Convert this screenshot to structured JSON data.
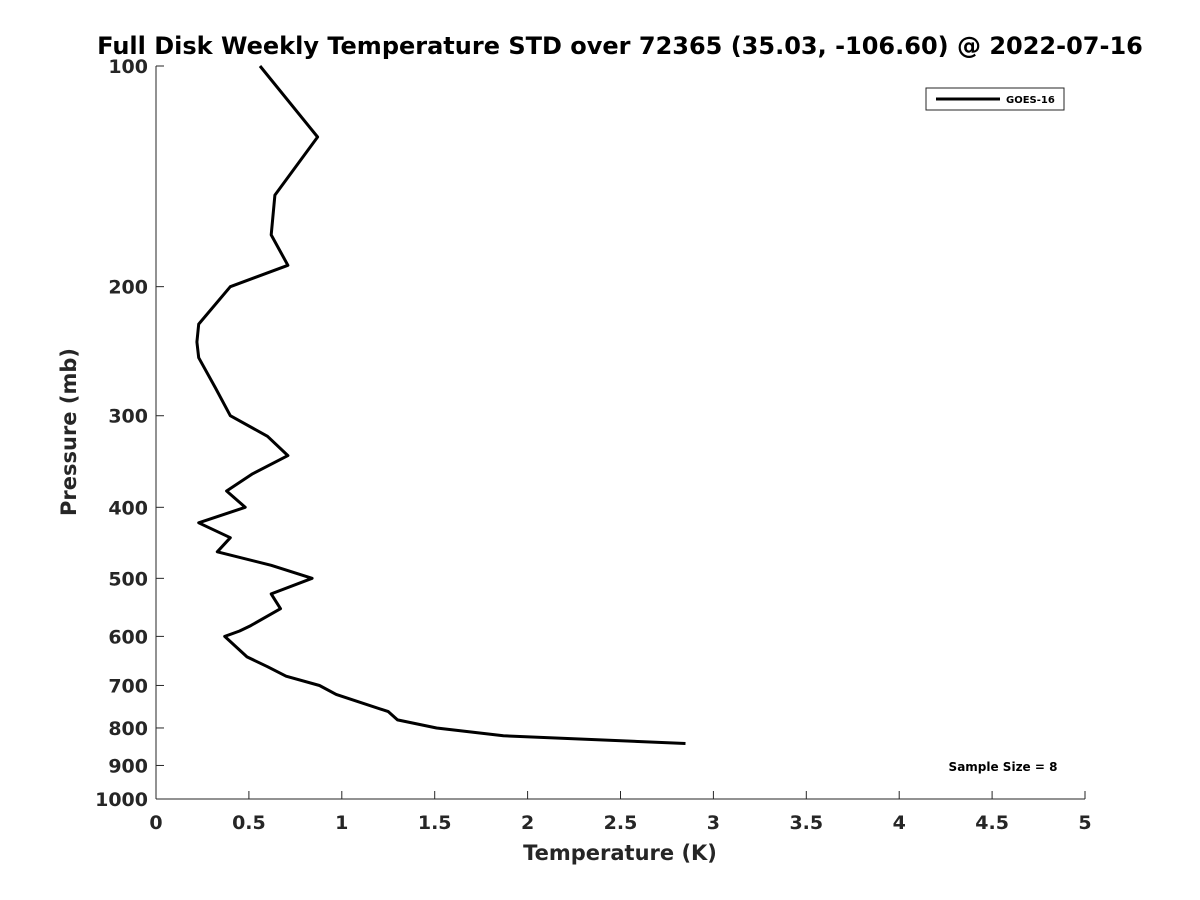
{
  "chart_data": {
    "type": "line",
    "title": "Full Disk Weekly Temperature STD over 72365 (35.03, -106.60) @ 2022-07-16",
    "xlabel": "Temperature (K)",
    "ylabel": "Pressure (mb)",
    "xlim": [
      0,
      5
    ],
    "ylim": [
      100,
      1000
    ],
    "y_scale": "log",
    "y_reversed": true,
    "x_ticks": [
      "0",
      "0.5",
      "1",
      "1.5",
      "2",
      "2.5",
      "3",
      "3.5",
      "4",
      "4.5",
      "5"
    ],
    "y_ticks": [
      "100",
      "200",
      "300",
      "400",
      "500",
      "600",
      "700",
      "800",
      "900",
      "1000"
    ],
    "grid": false,
    "legend": {
      "placement": "top-right",
      "entries": [
        "GOES-16"
      ]
    },
    "annotation": "Sample Size = 8",
    "series": [
      {
        "name": "GOES-16",
        "color": "#000000",
        "points": [
          [
            0.56,
            100
          ],
          [
            0.87,
            125
          ],
          [
            0.64,
            150
          ],
          [
            0.62,
            170
          ],
          [
            0.71,
            187
          ],
          [
            0.4,
            200
          ],
          [
            0.23,
            225
          ],
          [
            0.22,
            238
          ],
          [
            0.23,
            250
          ],
          [
            0.32,
            275
          ],
          [
            0.4,
            300
          ],
          [
            0.6,
            320
          ],
          [
            0.71,
            340
          ],
          [
            0.52,
            360
          ],
          [
            0.38,
            380
          ],
          [
            0.48,
            400
          ],
          [
            0.23,
            420
          ],
          [
            0.4,
            440
          ],
          [
            0.33,
            460
          ],
          [
            0.62,
            480
          ],
          [
            0.84,
            500
          ],
          [
            0.62,
            525
          ],
          [
            0.67,
            550
          ],
          [
            0.51,
            580
          ],
          [
            0.45,
            590
          ],
          [
            0.37,
            600
          ],
          [
            0.49,
            640
          ],
          [
            0.6,
            660
          ],
          [
            0.7,
            680
          ],
          [
            0.88,
            700
          ],
          [
            0.97,
            720
          ],
          [
            1.25,
            760
          ],
          [
            1.3,
            780
          ],
          [
            1.51,
            800
          ],
          [
            1.87,
            820
          ],
          [
            2.85,
            840
          ]
        ]
      }
    ]
  }
}
